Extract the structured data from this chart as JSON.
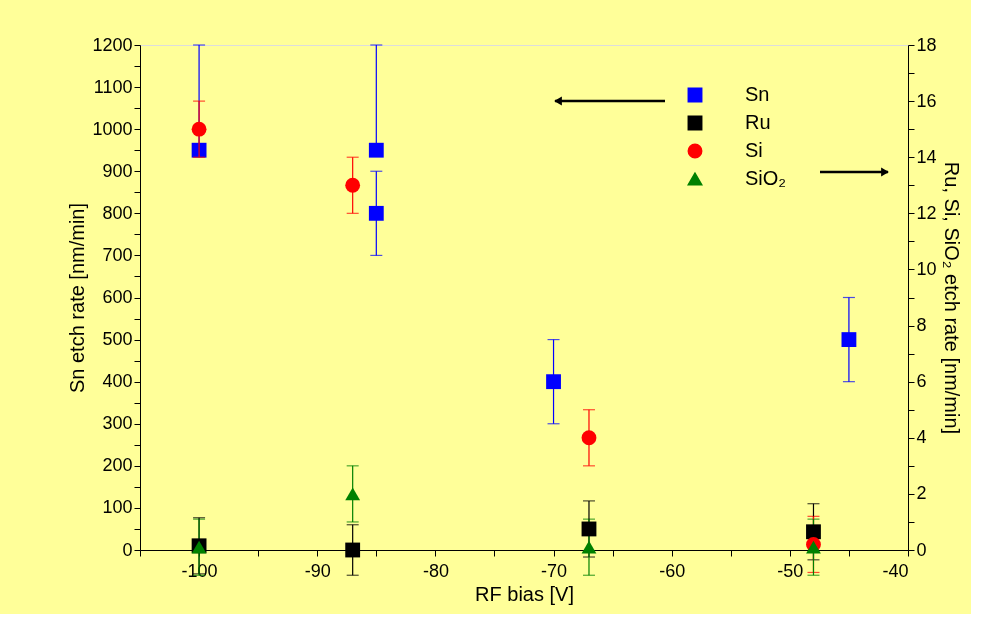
{
  "chart_data": {
    "type": "scatter",
    "xlabel": "RF bias [V]",
    "ylabel": "Sn etch rate [nm/min]",
    "y2label": "Ru, Si, SiO₂ etch rate [nm/min]",
    "xlim": [
      -105,
      -40
    ],
    "xticks": [
      {
        "value": -105,
        "label": null
      },
      -100,
      {
        "value": -95,
        "label": null
      },
      -90,
      {
        "value": -85,
        "label": null
      },
      -80,
      {
        "value": -75,
        "label": null
      },
      -70,
      {
        "value": -65,
        "label": null
      },
      -60,
      {
        "value": -55,
        "label": null
      },
      -50,
      {
        "value": -45,
        "label": null
      },
      -40
    ],
    "ylim": [
      0,
      1200
    ],
    "yticks": [
      0,
      {
        "value": 50,
        "label": null
      },
      100,
      {
        "value": 150,
        "label": null
      },
      200,
      {
        "value": 250,
        "label": null
      },
      300,
      {
        "value": 350,
        "label": null
      },
      400,
      {
        "value": 450,
        "label": null
      },
      500,
      {
        "value": 550,
        "label": null
      },
      600,
      {
        "value": 650,
        "label": null
      },
      700,
      {
        "value": 750,
        "label": null
      },
      800,
      {
        "value": 850,
        "label": null
      },
      900,
      {
        "value": 950,
        "label": null
      },
      1000,
      {
        "value": 1050,
        "label": null
      },
      1100,
      {
        "value": 1150,
        "label": null
      },
      1200
    ],
    "y2lim": [
      0,
      18
    ],
    "y2ticks": [
      0,
      {
        "value": 1,
        "label": null
      },
      2,
      {
        "value": 3,
        "label": null
      },
      4,
      {
        "value": 5,
        "label": null
      },
      6,
      {
        "value": 7,
        "label": null
      },
      8,
      {
        "value": 9,
        "label": null
      },
      10,
      {
        "value": 11,
        "label": null
      },
      12,
      {
        "value": 13,
        "label": null
      },
      14,
      {
        "value": 15,
        "label": null
      },
      16,
      {
        "value": 17,
        "label": null
      },
      18
    ],
    "grid": false,
    "legend": "top right",
    "series": [
      {
        "name": "Sn",
        "color": "#0000ff",
        "marker": "square",
        "axis": "y",
        "x": [
          -100,
          -85,
          -85,
          -70,
          -45
        ],
        "values": [
          950,
          950,
          800,
          400,
          500
        ],
        "errors": [
          [
            940,
            1200
          ],
          [
            940,
            1200
          ],
          [
            700,
            900
          ],
          [
            300,
            500
          ],
          [
            400,
            600
          ]
        ]
      },
      {
        "name": "Ru",
        "color": "#000000",
        "marker": "square",
        "axis": "y2",
        "x": [
          -100,
          -87,
          -67,
          -48
        ],
        "values": [
          0.15,
          0,
          0.75,
          0.65
        ],
        "errors": [
          1,
          0.9,
          1,
          1
        ]
      },
      {
        "name": "Si",
        "color": "#ff0000",
        "marker": "circle",
        "axis": "y2",
        "x": [
          -100,
          -87,
          -67,
          -48
        ],
        "values": [
          15,
          13,
          4,
          0.2
        ],
        "errors": [
          1,
          1,
          1,
          1
        ]
      },
      {
        "name": "SiO₂",
        "color": "#008000",
        "marker": "triangle",
        "axis": "y2",
        "x": [
          -100,
          -87,
          -67,
          -48
        ],
        "values": [
          0.1,
          2,
          0.1,
          0.1
        ],
        "errors": [
          1,
          1,
          1,
          1
        ]
      }
    ]
  }
}
